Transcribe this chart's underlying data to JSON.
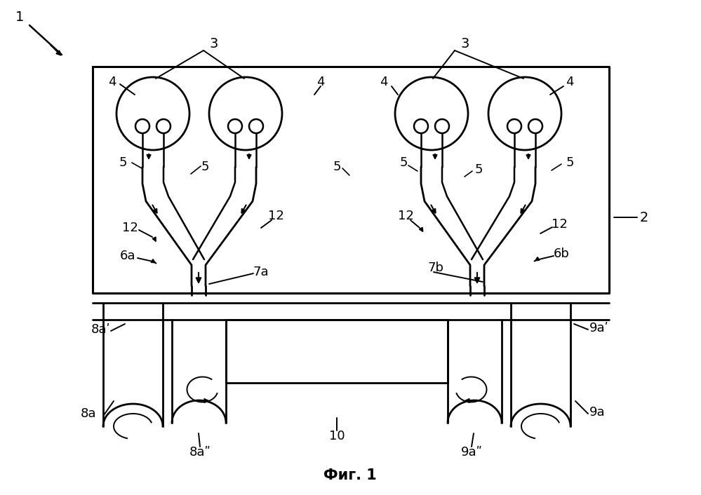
{
  "title": "Фиг. 1",
  "label_1": "1",
  "label_2": "2",
  "label_3": "3",
  "label_4": "4",
  "label_5": "5",
  "label_6a": "6a",
  "label_6b": "6b",
  "label_7a": "7a",
  "label_7b": "7b",
  "label_8a": "8a",
  "label_8a_prime": "8aʹ",
  "label_8a_dbl": "8aʺ",
  "label_9a": "9a",
  "label_9a_prime": "9aʹ",
  "label_9a_dbl": "9aʺ",
  "label_10": "10",
  "label_12": "12"
}
